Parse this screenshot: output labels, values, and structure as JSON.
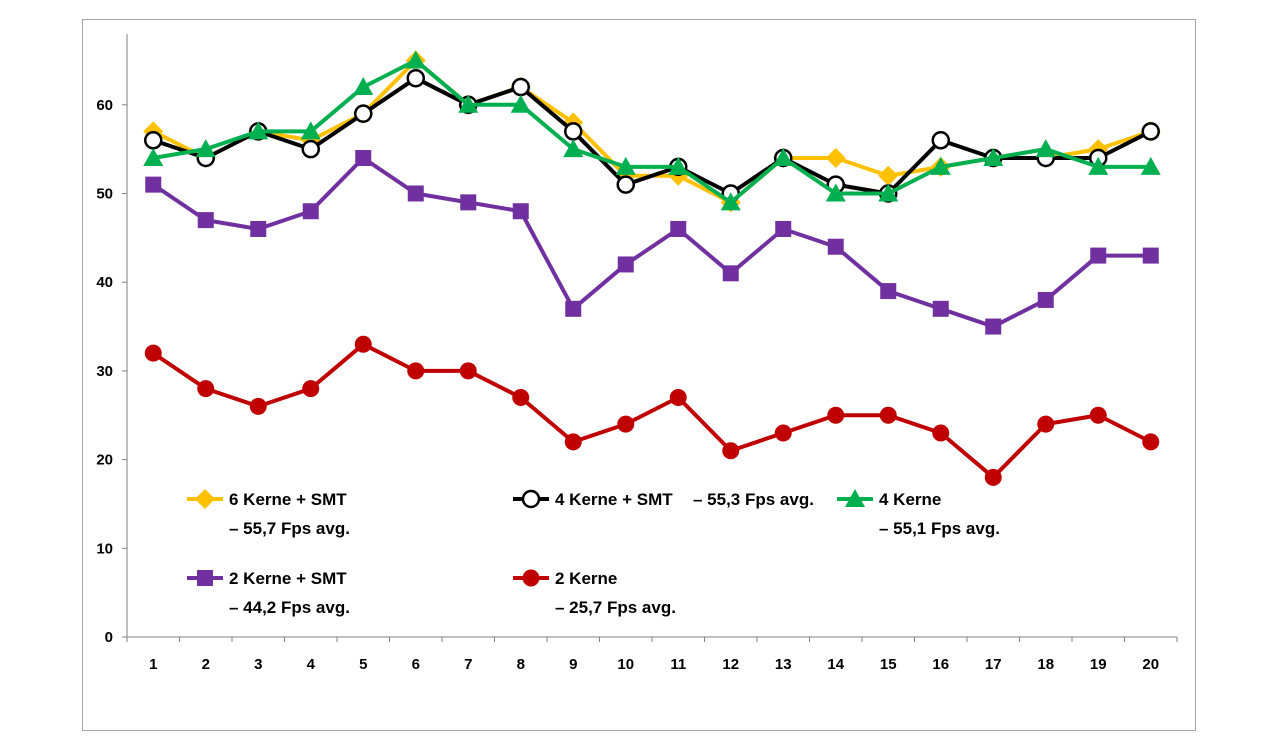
{
  "chart_data": {
    "type": "line",
    "x": [
      1,
      2,
      3,
      4,
      5,
      6,
      7,
      8,
      9,
      10,
      11,
      12,
      13,
      14,
      15,
      16,
      17,
      18,
      19,
      20
    ],
    "ylim": [
      0,
      70
    ],
    "yticks": [
      0,
      10,
      20,
      30,
      40,
      50,
      60
    ],
    "grid": false,
    "legend_position": "inside-bottom-left",
    "series": [
      {
        "name": "6 Kerne + SMT",
        "avg_label": "– 55,7 Fps avg.",
        "color": "#ffc000",
        "marker": "diamond",
        "values": [
          57,
          54,
          57,
          56,
          59,
          65,
          60,
          62,
          58,
          52,
          52,
          49,
          54,
          54,
          52,
          53,
          54,
          54,
          55,
          57
        ]
      },
      {
        "name": "4 Kerne + SMT",
        "avg_label": "– 55,3 Fps avg.",
        "color": "#000000",
        "marker": "circle-open",
        "values": [
          56,
          54,
          57,
          55,
          59,
          63,
          60,
          62,
          57,
          51,
          53,
          50,
          54,
          51,
          50,
          56,
          54,
          54,
          54,
          57
        ]
      },
      {
        "name": "4 Kerne",
        "avg_label": "– 55,1 Fps avg.",
        "color": "#00b050",
        "marker": "triangle",
        "values": [
          54,
          55,
          57,
          57,
          62,
          65,
          60,
          60,
          55,
          53,
          53,
          49,
          54,
          50,
          50,
          53,
          54,
          55,
          53,
          53
        ]
      },
      {
        "name": "2 Kerne + SMT",
        "avg_label": "– 44,2 Fps avg.",
        "color": "#7030a0",
        "marker": "square",
        "values": [
          51,
          47,
          46,
          48,
          54,
          50,
          49,
          48,
          37,
          42,
          46,
          41,
          46,
          44,
          39,
          37,
          35,
          38,
          43,
          43
        ]
      },
      {
        "name": "2 Kerne",
        "avg_label": "– 25,7 Fps avg.",
        "color": "#c00000",
        "marker": "circle",
        "values": [
          32,
          28,
          26,
          28,
          33,
          30,
          30,
          27,
          22,
          24,
          27,
          21,
          23,
          25,
          25,
          23,
          18,
          24,
          25,
          22
        ]
      }
    ]
  }
}
